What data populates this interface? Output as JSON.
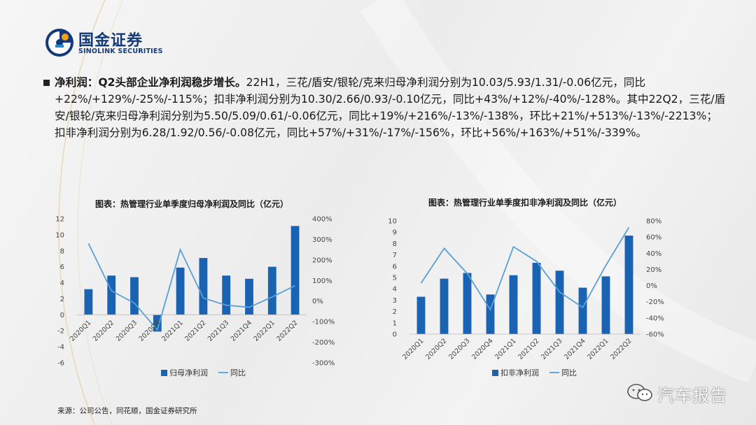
{
  "header": {
    "logo_cn": "国金证券",
    "logo_en": "SINOLINK SECURITIES"
  },
  "paragraph": {
    "lead": "净利润：Q2头部企业净利润稳步增长。",
    "body": "22H1，三花/盾安/银轮/克来归母净利润分别为10.03/5.93/1.31/-0.06亿元，同比+22%/+129%/-25%/-115%；扣非净利润分别为10.30/2.66/0.93/-0.10亿元，同比+43%/+12%/-40%/-128%。其中22Q2，三花/盾安/银轮/克来归母净利润分别为5.50/5.09/0.61/-0.06亿元，同比+19%/+216%/-13%/-138%，环比+21%/+513%/-13%/-2213%；扣非净利润分别为6.28/1.92/0.56/-0.08亿元，同比+57%/+31%/-17%/-156%，环比+56%/+163%/+51%/-339%。"
  },
  "chart_data": [
    {
      "type": "bar",
      "title": "图表：热管理行业单季度归母净利润及同比（亿元）",
      "categories": [
        "2020Q1",
        "2020Q2",
        "2020Q3",
        "2020Q4",
        "2021Q1",
        "2021Q2",
        "2021Q3",
        "2021Q4",
        "2022Q1",
        "2022Q2"
      ],
      "series": [
        {
          "name": "归母净利润",
          "type": "bar",
          "axis": "left",
          "values": [
            3.2,
            4.9,
            4.7,
            -2.1,
            5.9,
            7.1,
            4.9,
            4.5,
            6.0,
            11.1
          ]
        },
        {
          "name": "同比",
          "type": "line",
          "axis": "right",
          "values": [
            280,
            50,
            -10,
            -140,
            250,
            15,
            -20,
            -30,
            20,
            75
          ]
        }
      ],
      "left_axis": {
        "min": -6,
        "max": 12,
        "ticks": [
          12,
          10,
          8,
          6,
          4,
          2,
          0,
          -2,
          -4,
          -6
        ],
        "labels": [
          "12",
          "10",
          "8",
          "6",
          "4",
          "2",
          "0",
          "-2",
          "-4",
          "-6"
        ]
      },
      "right_axis": {
        "min": -300,
        "max": 400,
        "ticks": [
          400,
          300,
          200,
          100,
          0,
          -100,
          -200,
          -300
        ],
        "labels": [
          "400%",
          "300%",
          "200%",
          "100%",
          "0%",
          "-100%",
          "-200%",
          "-300%"
        ]
      },
      "legend_position": "bottom",
      "colors": {
        "bar": "#1a63b3",
        "line": "#5aa0d8"
      }
    },
    {
      "type": "bar",
      "title": "图表：热管理行业单季度扣非净利润及同比（亿元）",
      "categories": [
        "2020Q1",
        "2020Q2",
        "2020Q3",
        "2020Q4",
        "2021Q1",
        "2021Q2",
        "2021Q3",
        "2021Q4",
        "2022Q1",
        "2022Q2"
      ],
      "series": [
        {
          "name": "扣非净利润",
          "type": "bar",
          "axis": "left",
          "values": [
            3.3,
            4.9,
            5.4,
            3.5,
            5.2,
            6.3,
            5.6,
            4.1,
            5.1,
            8.7
          ]
        },
        {
          "name": "同比",
          "type": "line",
          "axis": "right",
          "values": [
            3,
            46,
            15,
            -30,
            48,
            30,
            -8,
            -27,
            25,
            72
          ]
        }
      ],
      "left_axis": {
        "min": 0,
        "max": 10,
        "ticks": [
          10,
          9,
          8,
          7,
          6,
          5,
          4,
          3,
          2,
          1,
          0
        ],
        "labels": [
          "10",
          "9",
          "8",
          "7",
          "6",
          "5",
          "4",
          "3",
          "2",
          "1",
          "0"
        ]
      },
      "right_axis": {
        "min": -60,
        "max": 80,
        "ticks": [
          80,
          60,
          40,
          20,
          0,
          -20,
          -40,
          -60
        ],
        "labels": [
          "80%",
          "60%",
          "40%",
          "20%",
          "0%",
          "-20%",
          "-40%",
          "-60%"
        ]
      },
      "legend_position": "bottom",
      "colors": {
        "bar": "#1a63b3",
        "line": "#5aa0d8"
      }
    }
  ],
  "footer": {
    "source": "来源：公司公告，同花顺，国金证券研究所",
    "watermark": "汽车报告"
  }
}
